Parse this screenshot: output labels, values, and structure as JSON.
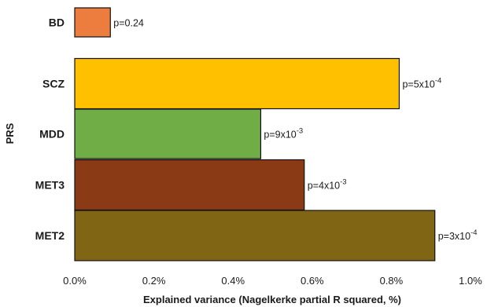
{
  "chart_data": {
    "type": "bar",
    "orientation": "horizontal",
    "categories": [
      "BD",
      "SCZ",
      "MDD",
      "MET3",
      "MET2"
    ],
    "values": [
      0.09,
      0.82,
      0.47,
      0.58,
      0.91
    ],
    "value_unit": "%",
    "colors": [
      "#ED7D3F",
      "#FFC000",
      "#70AD47",
      "#8B3A16",
      "#806614"
    ],
    "labels": [
      {
        "base": "p=0.24",
        "exp": ""
      },
      {
        "base": "p=5x10",
        "exp": "-4"
      },
      {
        "base": "p=9x10",
        "exp": "-3"
      },
      {
        "base": "p=4x10",
        "exp": "-3"
      },
      {
        "base": "p=3x10",
        "exp": "-4"
      }
    ],
    "xlim": [
      0,
      1.0
    ],
    "xticks": [
      0,
      0.2,
      0.4,
      0.6,
      0.8,
      1.0
    ],
    "xtick_labels": [
      "0.0%",
      "0.2%",
      "0.4%",
      "0.6%",
      "0.8%",
      "1.0%"
    ],
    "xlabel": "Explained variance (Nagelkerke partial R squared, %)",
    "ylabel": "PRS",
    "grid": false,
    "legend": false
  }
}
